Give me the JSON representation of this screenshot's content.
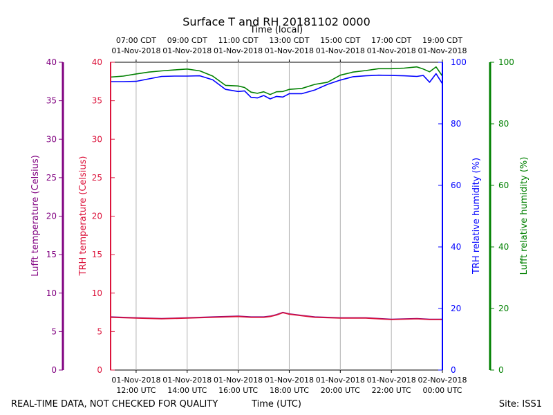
{
  "chart_data": {
    "type": "line",
    "title": "Surface T and RH 20181102 0000",
    "top_axis_label": "Time (local)",
    "bottom_axis_label": "Time (UTC)",
    "footer_left": "REAL-TIME DATA, NOT CHECKED FOR QUALITY",
    "footer_right": "Site: ISS1",
    "x_range_utc": [
      "2018-11-01 11:00",
      "2018-11-02 00:00"
    ],
    "bottom_ticks": [
      {
        "date": "01-Nov-2018",
        "time": "12:00 UTC"
      },
      {
        "date": "01-Nov-2018",
        "time": "14:00 UTC"
      },
      {
        "date": "01-Nov-2018",
        "time": "16:00 UTC"
      },
      {
        "date": "01-Nov-2018",
        "time": "18:00 UTC"
      },
      {
        "date": "01-Nov-2018",
        "time": "20:00 UTC"
      },
      {
        "date": "01-Nov-2018",
        "time": "22:00 UTC"
      },
      {
        "date": "02-Nov-2018",
        "time": "00:00 UTC"
      }
    ],
    "top_ticks": [
      {
        "time": "07:00 CDT",
        "date": "01-Nov-2018"
      },
      {
        "time": "09:00 CDT",
        "date": "01-Nov-2018"
      },
      {
        "time": "11:00 CDT",
        "date": "01-Nov-2018"
      },
      {
        "time": "13:00 CDT",
        "date": "01-Nov-2018"
      },
      {
        "time": "15:00 CDT",
        "date": "01-Nov-2018"
      },
      {
        "time": "17:00 CDT",
        "date": "01-Nov-2018"
      },
      {
        "time": "19:00 CDT",
        "date": "01-Nov-2018"
      }
    ],
    "axes": {
      "lufft_temp": {
        "label": "Lufft temperature (Celsius)",
        "ylim": [
          0,
          40
        ],
        "ticks": [
          0,
          5,
          10,
          15,
          20,
          25,
          30,
          35,
          40
        ],
        "color": "#800080"
      },
      "trh_temp": {
        "label": "TRH temperature (Celsius)",
        "ylim": [
          0,
          40
        ],
        "ticks": [
          0,
          5,
          10,
          15,
          20,
          25,
          30,
          35,
          40
        ],
        "color": "#dc143c"
      },
      "trh_rh": {
        "label": "TRH relative humidity (%)",
        "ylim": [
          0,
          100
        ],
        "ticks": [
          0,
          20,
          40,
          60,
          80,
          100
        ],
        "color": "#0000ff"
      },
      "lufft_rh": {
        "label": "Lufft relative humidity (%)",
        "ylim": [
          0,
          100
        ],
        "ticks": [
          0,
          20,
          40,
          60,
          80,
          100
        ],
        "color": "#008000"
      }
    },
    "grid": "vertical",
    "x_units": "hours UTC",
    "series": [
      {
        "axis": "lufft_rh",
        "color": "#008000",
        "x": [
          11.0,
          11.5,
          12.0,
          12.5,
          13.0,
          13.5,
          14.0,
          14.5,
          15.0,
          15.5,
          16.0,
          16.25,
          16.5,
          16.75,
          17.0,
          17.25,
          17.5,
          17.75,
          18.0,
          18.5,
          19.0,
          19.5,
          20.0,
          20.5,
          21.0,
          21.5,
          22.0,
          22.5,
          23.0,
          23.25,
          23.5,
          23.75,
          24.0
        ],
        "y": [
          95.2,
          95.5,
          96.2,
          96.8,
          97.2,
          97.5,
          97.8,
          97.2,
          95.5,
          92.5,
          92.3,
          91.8,
          90.3,
          89.9,
          90.4,
          89.5,
          90.4,
          90.5,
          91.2,
          91.5,
          92.8,
          93.5,
          95.8,
          96.8,
          97.3,
          97.9,
          97.9,
          98.1,
          98.5,
          97.8,
          96.9,
          98.5,
          95.5
        ]
      },
      {
        "axis": "trh_rh",
        "color": "#0000ff",
        "x": [
          11.0,
          11.5,
          12.0,
          12.5,
          13.0,
          13.5,
          14.0,
          14.5,
          15.0,
          15.5,
          16.0,
          16.25,
          16.5,
          16.75,
          17.0,
          17.25,
          17.5,
          17.75,
          18.0,
          18.5,
          19.0,
          19.5,
          20.0,
          20.5,
          21.0,
          21.5,
          22.0,
          22.5,
          23.0,
          23.25,
          23.5,
          23.75,
          24.0
        ],
        "y": [
          93.7,
          93.7,
          93.8,
          94.6,
          95.4,
          95.5,
          95.5,
          95.6,
          94.3,
          91.2,
          90.5,
          90.7,
          88.6,
          88.4,
          89.2,
          88.1,
          88.9,
          88.7,
          89.8,
          89.8,
          91.0,
          92.8,
          94.2,
          95.3,
          95.6,
          95.8,
          95.7,
          95.6,
          95.4,
          95.7,
          93.5,
          96.3,
          93.0
        ]
      },
      {
        "axis": "lufft_temp",
        "color": "#800080",
        "x": [
          11.0,
          12.0,
          13.0,
          14.0,
          15.0,
          16.0,
          16.5,
          17.0,
          17.25,
          17.5,
          17.75,
          18.0,
          18.5,
          19.0,
          20.0,
          21.0,
          22.0,
          23.0,
          23.5,
          24.0
        ],
        "y": [
          6.9,
          6.8,
          6.7,
          6.8,
          6.9,
          7.0,
          6.9,
          6.9,
          7.0,
          7.2,
          7.5,
          7.3,
          7.1,
          6.9,
          6.8,
          6.8,
          6.6,
          6.7,
          6.6,
          6.6
        ]
      },
      {
        "axis": "trh_temp",
        "color": "#dc143c",
        "x": [
          11.0,
          12.0,
          13.0,
          14.0,
          15.0,
          16.0,
          16.5,
          17.0,
          17.25,
          17.5,
          17.75,
          18.0,
          18.5,
          19.0,
          20.0,
          21.0,
          22.0,
          23.0,
          23.5,
          24.0
        ],
        "y": [
          6.85,
          6.75,
          6.65,
          6.75,
          6.85,
          6.95,
          6.85,
          6.85,
          6.95,
          7.15,
          7.45,
          7.25,
          7.05,
          6.85,
          6.75,
          6.75,
          6.55,
          6.65,
          6.55,
          6.55
        ]
      }
    ]
  }
}
